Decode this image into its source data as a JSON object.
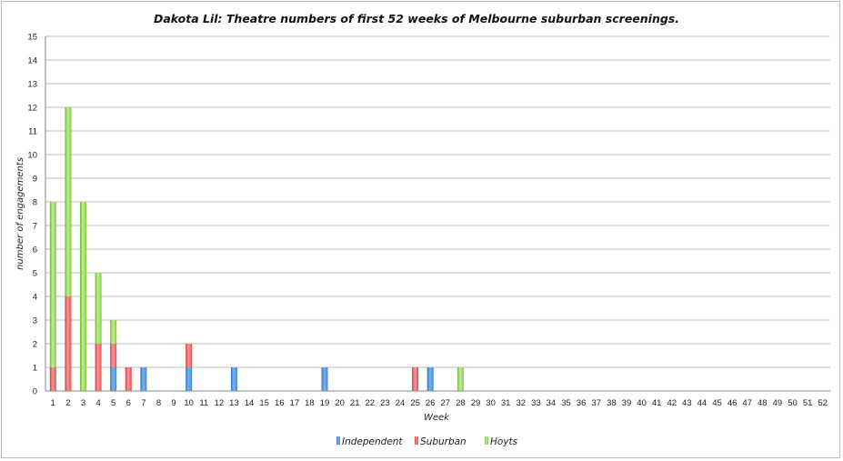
{
  "chart_data": {
    "type": "bar",
    "stacked": true,
    "title": "Dakota Lil: Theatre numbers of first 52 weeks of Melbourne suburban screenings.",
    "xlabel": "Week",
    "ylabel": "number of engagements",
    "ylim": [
      0,
      15
    ],
    "yticks": [
      "0",
      "1",
      "2",
      "3",
      "4",
      "5",
      "6",
      "7",
      "8",
      "9",
      "10",
      "11",
      "12",
      "13",
      "14",
      "15"
    ],
    "categories": [
      "1",
      "2",
      "3",
      "4",
      "5",
      "6",
      "7",
      "8",
      "9",
      "10",
      "11",
      "12",
      "13",
      "14",
      "15",
      "16",
      "17",
      "18",
      "19",
      "20",
      "21",
      "22",
      "23",
      "24",
      "25",
      "26",
      "27",
      "28",
      "29",
      "30",
      "31",
      "32",
      "33",
      "34",
      "35",
      "36",
      "37",
      "38",
      "39",
      "40",
      "41",
      "42",
      "43",
      "44",
      "45",
      "46",
      "47",
      "48",
      "49",
      "50",
      "51",
      "52"
    ],
    "series": [
      {
        "name": "Independent",
        "color": "#4a90d9",
        "values": [
          0,
          0,
          0,
          0,
          1,
          0,
          1,
          0,
          0,
          1,
          0,
          0,
          1,
          0,
          0,
          0,
          0,
          0,
          1,
          0,
          0,
          0,
          0,
          0,
          0,
          1,
          0,
          0,
          0,
          0,
          0,
          0,
          0,
          0,
          0,
          0,
          0,
          0,
          0,
          0,
          0,
          0,
          0,
          0,
          0,
          0,
          0,
          0,
          0,
          0,
          0,
          0
        ]
      },
      {
        "name": "Suburban",
        "color": "#e85a5a",
        "values": [
          1,
          4,
          0,
          2,
          1,
          1,
          0,
          0,
          0,
          1,
          0,
          0,
          0,
          0,
          0,
          0,
          0,
          0,
          0,
          0,
          0,
          0,
          0,
          0,
          1,
          0,
          0,
          0,
          0,
          0,
          0,
          0,
          0,
          0,
          0,
          0,
          0,
          0,
          0,
          0,
          0,
          0,
          0,
          0,
          0,
          0,
          0,
          0,
          0,
          0,
          0,
          0
        ]
      },
      {
        "name": "Hoyts",
        "color": "#8fd14f",
        "values": [
          7,
          8,
          8,
          3,
          1,
          0,
          0,
          0,
          0,
          0,
          0,
          0,
          0,
          0,
          0,
          0,
          0,
          0,
          0,
          0,
          0,
          0,
          0,
          0,
          0,
          0,
          0,
          1,
          0,
          0,
          0,
          0,
          0,
          0,
          0,
          0,
          0,
          0,
          0,
          0,
          0,
          0,
          0,
          0,
          0,
          0,
          0,
          0,
          0,
          0,
          0,
          0
        ]
      }
    ],
    "grid": true,
    "legend": "bottom-center"
  }
}
